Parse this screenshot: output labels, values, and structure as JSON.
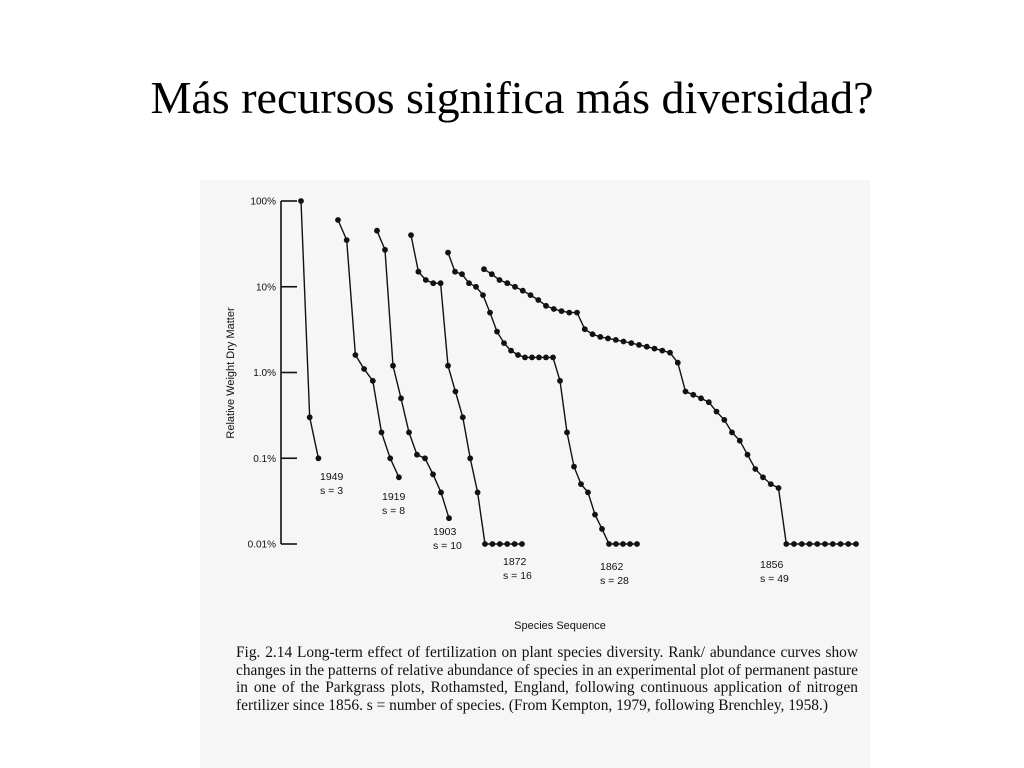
{
  "slide": {
    "title": "Más recursos significa más diversidad?"
  },
  "chart_data": {
    "type": "line",
    "ylabel": "Relative Weight Dry Matter",
    "xlabel": "Species Sequence",
    "y_scale": "log",
    "y_ticks": [
      {
        "value": 100,
        "label": "100%"
      },
      {
        "value": 10,
        "label": "10%"
      },
      {
        "value": 1,
        "label": "1.0%"
      },
      {
        "value": 0.1,
        "label": "0.1%"
      },
      {
        "value": 0.01,
        "label": "0.01%"
      }
    ],
    "ylim": [
      0.01,
      100
    ],
    "grid": false,
    "legend": "none",
    "series": [
      {
        "year": "1949",
        "s_label": "s = 3",
        "values": [
          100,
          0.3,
          0.1
        ]
      },
      {
        "year": "1919",
        "s_label": "s = 8",
        "values": [
          60,
          35,
          1.6,
          1.1,
          0.8,
          0.2,
          0.1,
          0.06
        ]
      },
      {
        "year": "1903",
        "s_label": "s = 10",
        "values": [
          45,
          27,
          1.2,
          0.5,
          0.2,
          0.11,
          0.1,
          0.065,
          0.04,
          0.02
        ]
      },
      {
        "year": "1872",
        "s_label": "s = 16",
        "values": [
          40,
          15,
          12,
          11,
          11,
          1.2,
          0.6,
          0.3,
          0.1,
          0.04,
          0.01,
          0.01,
          0.01,
          0.01,
          0.01,
          0.01
        ]
      },
      {
        "year": "1862",
        "s_label": "s = 28",
        "values": [
          25,
          15,
          14,
          11,
          10,
          8,
          5,
          3,
          2.2,
          1.8,
          1.6,
          1.5,
          1.5,
          1.5,
          1.5,
          1.5,
          0.8,
          0.2,
          0.08,
          0.05,
          0.04,
          0.022,
          0.015,
          0.01,
          0.01,
          0.01,
          0.01,
          0.01
        ]
      },
      {
        "year": "1856",
        "s_label": "s = 49",
        "values": [
          16,
          14,
          12,
          11,
          10,
          9,
          8,
          7,
          6,
          5.5,
          5.2,
          5,
          5,
          3.2,
          2.8,
          2.6,
          2.5,
          2.4,
          2.3,
          2.2,
          2.1,
          2,
          1.9,
          1.8,
          1.7,
          1.3,
          0.6,
          0.55,
          0.5,
          0.45,
          0.35,
          0.28,
          0.2,
          0.16,
          0.11,
          0.075,
          0.06,
          0.05,
          0.045,
          0.01,
          0.01,
          0.01,
          0.01,
          0.01,
          0.01,
          0.01,
          0.01,
          0.01,
          0.01
        ]
      }
    ]
  },
  "caption": {
    "text": "Fig. 2.14 Long-term effect of fertilization on plant species diversity. Rank/ abundance curves show changes in the patterns of relative abundance of species in an experimental plot of permanent pasture in one of the Parkgrass plots, Rothamsted, England, following continuous application of nitrogen fertilizer since 1856. s = number of species. (From Kempton, 1979, following Brenchley, 1958.)"
  }
}
